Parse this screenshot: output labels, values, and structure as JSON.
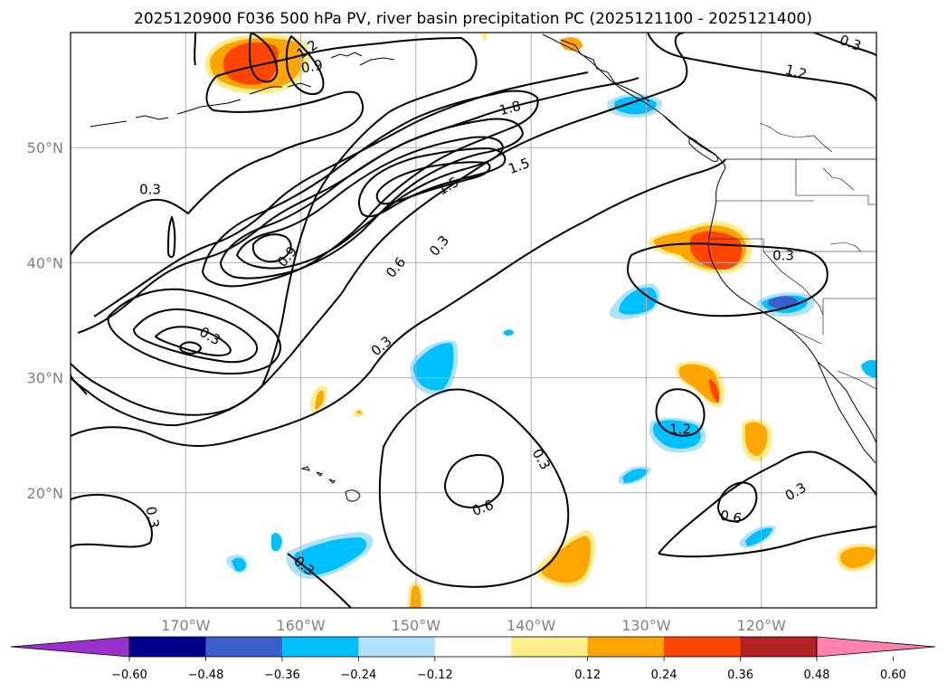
{
  "chart_data": {
    "type": "contour_map",
    "title": "2025120900 F036 500 hPa PV, river basin precipitation PC (2025121100 - 2025121400)",
    "lon_ticks": [
      {
        "value": -170,
        "label": "170°W"
      },
      {
        "value": -160,
        "label": "160°W"
      },
      {
        "value": -150,
        "label": "150°W"
      },
      {
        "value": -140,
        "label": "140°W"
      },
      {
        "value": -130,
        "label": "130°W"
      },
      {
        "value": -120,
        "label": "120°W"
      }
    ],
    "lat_ticks": [
      {
        "value": 20,
        "label": "20°N"
      },
      {
        "value": 30,
        "label": "30°N"
      },
      {
        "value": 40,
        "label": "40°N"
      },
      {
        "value": 50,
        "label": "50°N"
      }
    ],
    "xlim": [
      -180,
      -110
    ],
    "ylim": [
      10,
      60
    ],
    "grid": true,
    "contour_labels": [
      "1.2",
      "0.9",
      "0.3",
      "0.3",
      "1.2",
      "0.3",
      "1.8",
      "1.5",
      "1.5",
      "0.9",
      "0.6",
      "0.3",
      "0.3",
      "1.2",
      "0.3",
      "0.3",
      "0.6",
      "0.3",
      "0.6",
      "0.3",
      "0.3"
    ],
    "colorbar": {
      "ticks": [
        "−0.60",
        "−0.48",
        "−0.36",
        "−0.24",
        "−0.12",
        "0.12",
        "0.24",
        "0.36",
        "0.48",
        "0.60"
      ],
      "colors": [
        "#9932CC",
        "#00008B",
        "#3A5FCD",
        "#00BFFF",
        "#B0E2FF",
        "#FFFFFF",
        "#FFEC8B",
        "#FFA500",
        "#FF4500",
        "#B22222",
        "#FF82AB"
      ],
      "extend": "both"
    }
  }
}
